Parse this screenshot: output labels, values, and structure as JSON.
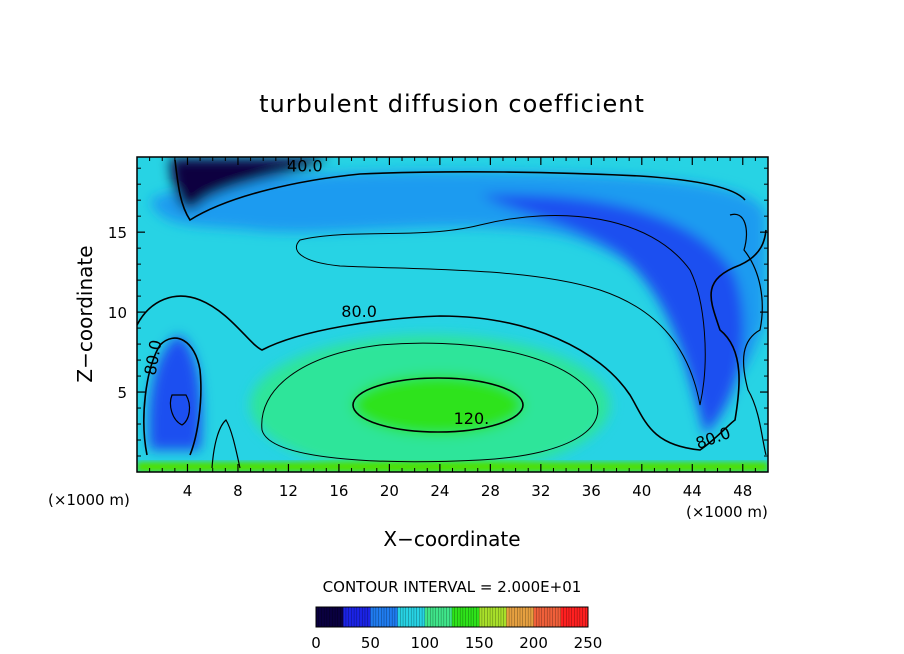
{
  "chart_data": {
    "type": "heatmap",
    "title": "turbulent diffusion coefficient",
    "xlabel": "X−coordinate",
    "ylabel": "Z−coordinate",
    "x_unit_left": "(×1000 m)",
    "x_unit_right": "(×1000 m)",
    "xlim": [
      0,
      50
    ],
    "ylim": [
      0,
      19.7
    ],
    "x_ticks": [
      4,
      8,
      12,
      16,
      20,
      24,
      28,
      32,
      36,
      40,
      44,
      48
    ],
    "y_ticks": [
      5,
      10,
      15
    ],
    "contour_interval_text": "CONTOUR INTERVAL = 2.000E+01",
    "contour_levels": [
      40,
      60,
      80,
      100,
      120
    ],
    "contour_labels": [
      {
        "text": "40.0",
        "x": 13.3,
        "z": 18.8
      },
      {
        "text": "80.0",
        "x": 17.6,
        "z": 9.7
      },
      {
        "text": "80.0",
        "x": 1.7,
        "z": 7.1
      },
      {
        "text": "120.",
        "x": 26.5,
        "z": 3.0
      },
      {
        "text": "80.0",
        "x": 45.8,
        "z": 1.8
      }
    ],
    "colorbar": {
      "min": 0,
      "max": 250,
      "tick_values": [
        0,
        50,
        100,
        150,
        200,
        250
      ],
      "tick_labels": [
        "0",
        "50",
        "100",
        "150",
        "200",
        "250"
      ],
      "colors": [
        "#0a0040",
        "#1b23e6",
        "#1f7cf0",
        "#27d3e4",
        "#3fe58a",
        "#2ee31a",
        "#a8e02a",
        "#e6a040",
        "#f0603a",
        "#ff2020"
      ]
    },
    "field_features": [
      {
        "name": "background",
        "value": 70
      },
      {
        "name": "upper-band",
        "value": 45
      },
      {
        "name": "top-left-core",
        "value": 15
      },
      {
        "name": "right-descending-band",
        "value": 45
      },
      {
        "name": "left-low-cell",
        "value": 40
      },
      {
        "name": "central-high",
        "value": 130
      }
    ],
    "colors": {
      "c40": "#1b50f0",
      "c60": "#1f9bf0",
      "c80": "#27d3e4",
      "c100": "#2fe59a",
      "c120": "#2ee31a",
      "bottom_edge": "#4ee000"
    }
  }
}
